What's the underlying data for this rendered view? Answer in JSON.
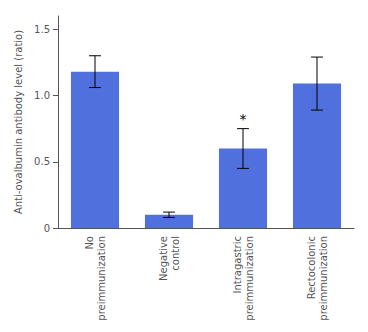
{
  "chart_data": {
    "type": "bar",
    "categories": [
      "No\npreimmunization",
      "Negative\ncontrol",
      "Intragastric\npreimmunization",
      "Rectocolonic\npreimmunization"
    ],
    "values": [
      1.18,
      0.1,
      0.6,
      1.09
    ],
    "errors": [
      0.12,
      0.02,
      0.15,
      0.2
    ],
    "ylabel": "Anti-ovalbumin antibody level (ratio)",
    "ylim": [
      0,
      1.6
    ],
    "yticks": [
      0,
      0.5,
      {
        "value": 1.0,
        "label": "1.0"
      },
      1.5
    ],
    "annotations": [
      {
        "text": "*",
        "x": "Intragastric\npreimmunization"
      }
    ],
    "grid": false
  }
}
